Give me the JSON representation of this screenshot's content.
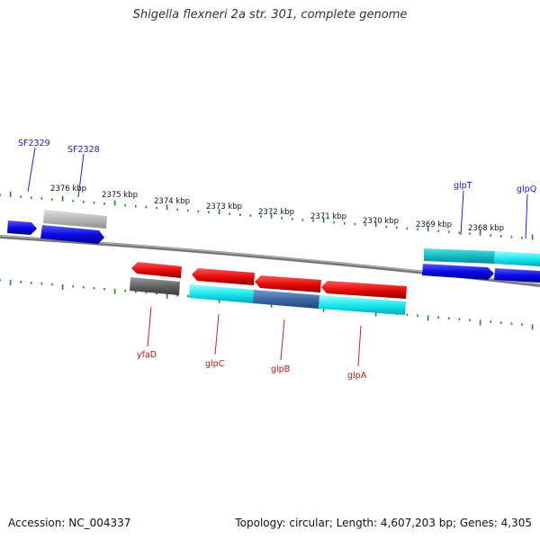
{
  "title": "Shigella flexneri 2a str. 301, complete genome",
  "footer": {
    "accession": "Accession: NC_004337",
    "topology": "Topology: circular; Length: 4,607,203 bp; Genes: 4,305"
  },
  "scale_labels": [
    "2376 kbp",
    "2375 kbp",
    "2374 kbp",
    "2373 kbp",
    "2372 kbp",
    "2371 kbp",
    "2370 kbp",
    "2369 kbp",
    "2368 kbp"
  ],
  "top_labels": [
    "SF2329",
    "SF2328",
    "glpT",
    "glpQ"
  ],
  "bottom_labels": [
    "yfaD",
    "glpC",
    "glpB",
    "glpA"
  ],
  "colors": {
    "backbone": "#777777",
    "scale": "#1a8a1a",
    "forward_cds": "#1212e0",
    "reverse_cds": "#e01010",
    "label_top": "#1c1cc4",
    "label_bottom": "#d21010"
  }
}
